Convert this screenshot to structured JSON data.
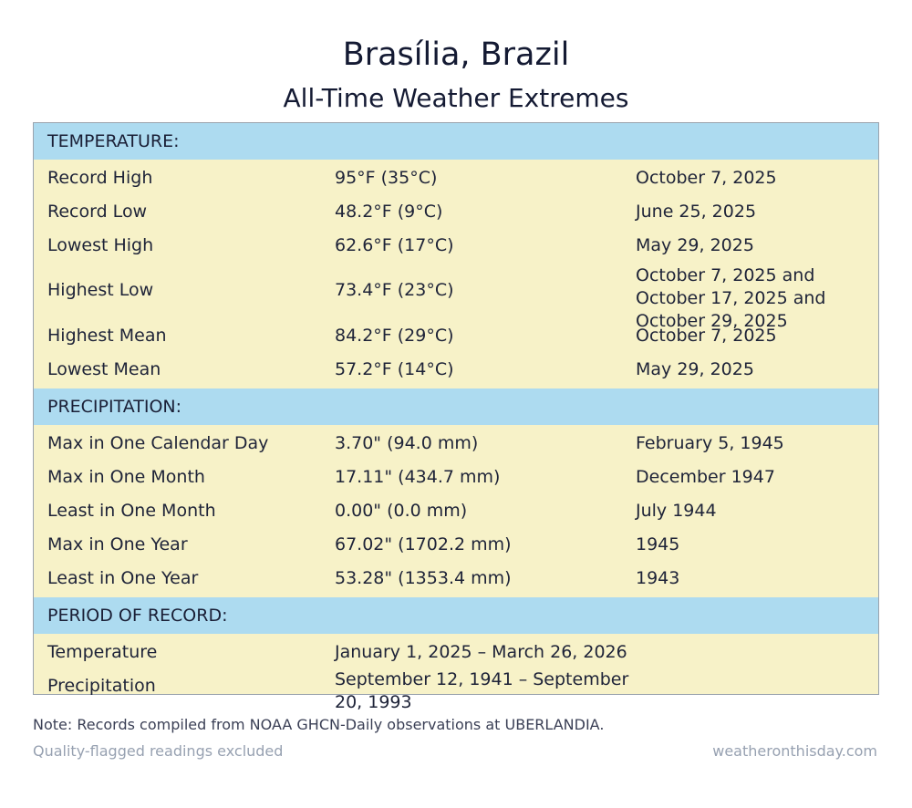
{
  "header": {
    "title": "Brasília, Brazil",
    "subtitle": "All-Time Weather Extremes"
  },
  "temperature": {
    "heading": "TEMPERATURE:",
    "rows": [
      {
        "label": "Record High",
        "value": "95°F (35°C)",
        "date": "October 7, 2025"
      },
      {
        "label": "Record Low",
        "value": "48.2°F (9°C)",
        "date": "June 25, 2025"
      },
      {
        "label": "Lowest High",
        "value": "62.6°F (17°C)",
        "date": "May 29, 2025"
      },
      {
        "label": "Highest Low",
        "value": "73.4°F (23°C)",
        "date": "October 7, 2025 and October 17, 2025 and October 29, 2025"
      },
      {
        "label": "Highest Mean",
        "value": "84.2°F (29°C)",
        "date": "October 7, 2025"
      },
      {
        "label": "Lowest Mean",
        "value": "57.2°F (14°C)",
        "date": "May 29, 2025"
      }
    ]
  },
  "precipitation": {
    "heading": "PRECIPITATION:",
    "rows": [
      {
        "label": "Max in One Calendar Day",
        "value": "3.70\" (94.0 mm)",
        "date": "February 5, 1945"
      },
      {
        "label": "Max in One Month",
        "value": "17.11\" (434.7 mm)",
        "date": "December 1947"
      },
      {
        "label": "Least in One Month",
        "value": "0.00\" (0.0 mm)",
        "date": "July 1944"
      },
      {
        "label": "Max in One Year",
        "value": "67.02\" (1702.2 mm)",
        "date": "1945"
      },
      {
        "label": "Least in One Year",
        "value": "53.28\" (1353.4 mm)",
        "date": "1943"
      }
    ]
  },
  "period": {
    "heading": "PERIOD OF RECORD:",
    "rows": [
      {
        "label": "Temperature",
        "value": "January 1, 2025 – March 26, 2026",
        "date": ""
      },
      {
        "label": "Precipitation",
        "value": "September 12, 1941 – September 20, 1993",
        "date": ""
      }
    ]
  },
  "footer": {
    "note": "Note: Records compiled from NOAA GHCN-Daily observations at UBERLANDIA.",
    "quality": "Quality-flagged readings excluded",
    "source": "weatheronthisday.com"
  }
}
